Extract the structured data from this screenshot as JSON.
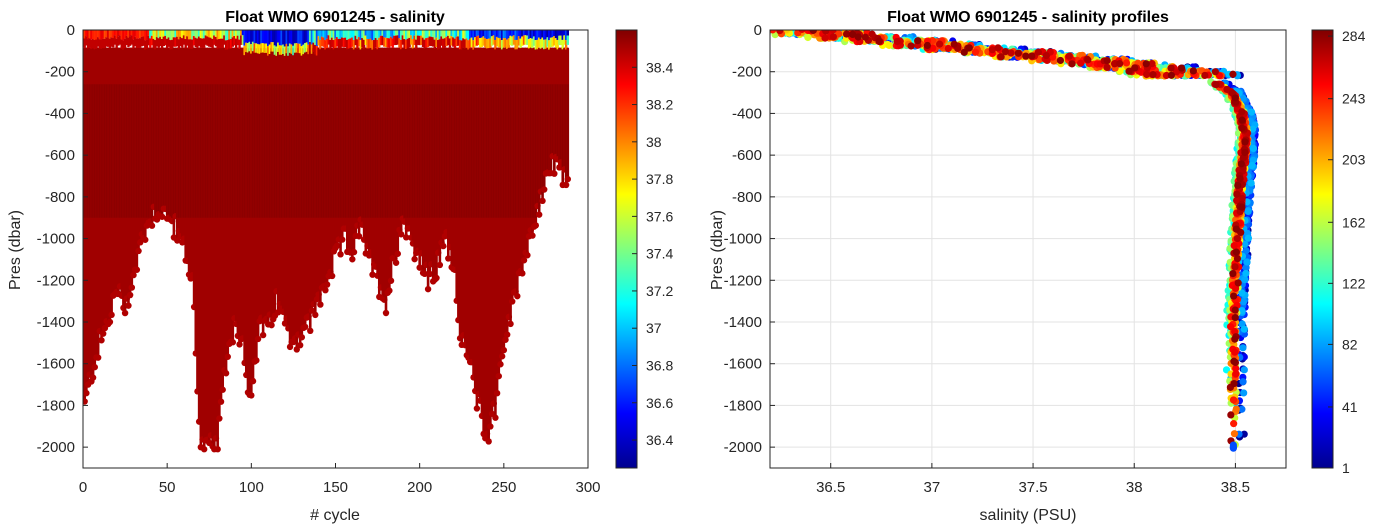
{
  "chart_data": [
    {
      "type": "scatter",
      "title": "Float WMO 6901245 - salinity",
      "xlabel": "# cycle",
      "ylabel": "Pres (dbar)",
      "xlim": [
        0,
        300
      ],
      "ylim": [
        -2100,
        0
      ],
      "xticks": [
        "0",
        "50",
        "100",
        "150",
        "200",
        "250",
        "300"
      ],
      "yticks": [
        "0",
        "-200",
        "-400",
        "-600",
        "-800",
        "-1000",
        "-1200",
        "-1400",
        "-1600",
        "-1800",
        "-2000"
      ],
      "grid": false,
      "colorbar": {
        "colormap": "jet",
        "range": [
          36.25,
          38.6
        ],
        "ticks": [
          "36.4",
          "36.6",
          "36.8",
          "37",
          "37.2",
          "37.4",
          "37.6",
          "37.8",
          "38",
          "38.2",
          "38.4"
        ]
      },
      "series": [
        {
          "values_description": "salinity per cycle and pressure",
          "x": [
            1,
            5,
            10,
            15,
            20,
            25,
            30,
            35,
            40,
            45,
            50,
            55,
            60,
            65,
            70,
            75,
            80,
            85,
            90,
            95,
            100,
            105,
            110,
            115,
            120,
            125,
            130,
            135,
            140,
            145,
            150,
            155,
            160,
            165,
            170,
            175,
            180,
            185,
            190,
            195,
            200,
            205,
            210,
            215,
            220,
            225,
            230,
            235,
            240,
            245,
            250,
            255,
            260,
            265,
            270,
            275,
            280,
            285,
            288
          ],
          "max_pres": [
            -1800,
            -1650,
            -1500,
            -1400,
            -1250,
            -1320,
            -1200,
            -1000,
            -900,
            -850,
            -900,
            -950,
            -1050,
            -1200,
            -2000,
            -2000,
            -2000,
            -1600,
            -1400,
            -1500,
            -1800,
            -1400,
            -1450,
            -1300,
            -1400,
            -1500,
            -1450,
            -1400,
            -1300,
            -1200,
            -1100,
            -1000,
            -1050,
            -950,
            -1100,
            -1200,
            -1300,
            -1100,
            -900,
            -1000,
            -1100,
            -1200,
            -1150,
            -1000,
            -1100,
            -1500,
            -1600,
            -1800,
            -1950,
            -1800,
            -1500,
            -1350,
            -1150,
            -1000,
            -900,
            -700,
            -650,
            -700,
            -720
          ]
        }
      ]
    },
    {
      "type": "scatter",
      "title": "Float WMO 6901245 - salinity profiles",
      "xlabel": "salinity (PSU)",
      "ylabel": "Pres (dbar)",
      "xlim": [
        36.2,
        38.75
      ],
      "ylim": [
        -2100,
        0
      ],
      "xticks": [
        "36.5",
        "37",
        "37.5",
        "38",
        "38.5"
      ],
      "yticks": [
        "0",
        "-200",
        "-400",
        "-600",
        "-800",
        "-1000",
        "-1200",
        "-1400",
        "-1600",
        "-1800",
        "-2000"
      ],
      "grid": true,
      "colorbar": {
        "colormap": "jet",
        "range": [
          1,
          288
        ],
        "ticks": [
          "1",
          "41",
          "82",
          "122",
          "162",
          "203",
          "243",
          "284"
        ]
      },
      "series": [
        {
          "values_description": "salinity profile points colored by cycle number",
          "pres": [
            0,
            -50,
            -100,
            -150,
            -200,
            -250,
            -300,
            -400,
            -500,
            -600,
            -700,
            -800,
            -1000,
            -1200,
            -1400,
            -1600,
            -1800,
            -2000
          ],
          "salinity": [
            36.3,
            36.8,
            37.3,
            37.8,
            38.2,
            38.4,
            38.48,
            38.53,
            38.55,
            38.54,
            38.53,
            38.52,
            38.51,
            38.5,
            38.49,
            38.49,
            38.49,
            38.49
          ]
        }
      ]
    }
  ]
}
